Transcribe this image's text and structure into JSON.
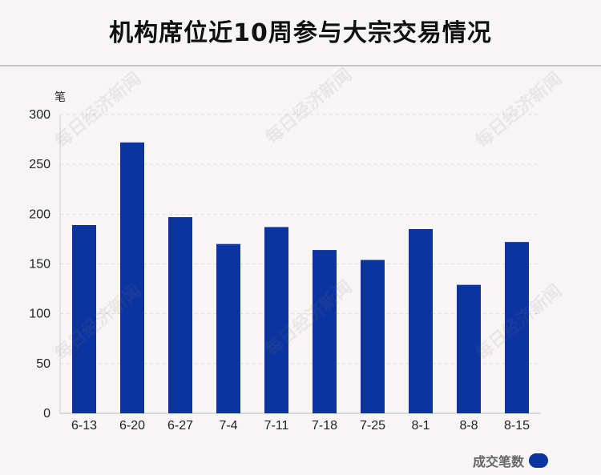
{
  "title": "机构席位近10周参与大宗交易情况",
  "watermark": "每日经济新闻",
  "chart_data": {
    "type": "bar",
    "unit_label": "笔",
    "categories": [
      "6-13",
      "6-20",
      "6-27",
      "7-4",
      "7-11",
      "7-18",
      "7-25",
      "8-1",
      "8-8",
      "8-15"
    ],
    "series": [
      {
        "name": "成交笔数",
        "values": [
          189,
          272,
          197,
          170,
          187,
          164,
          154,
          185,
          129,
          172
        ]
      }
    ],
    "ylim": [
      0,
      300
    ],
    "yticks": [
      0,
      50,
      100,
      150,
      200,
      250,
      300
    ],
    "grid": true,
    "legend_position": "bottom-right",
    "bar_color": "#0c34a0"
  }
}
